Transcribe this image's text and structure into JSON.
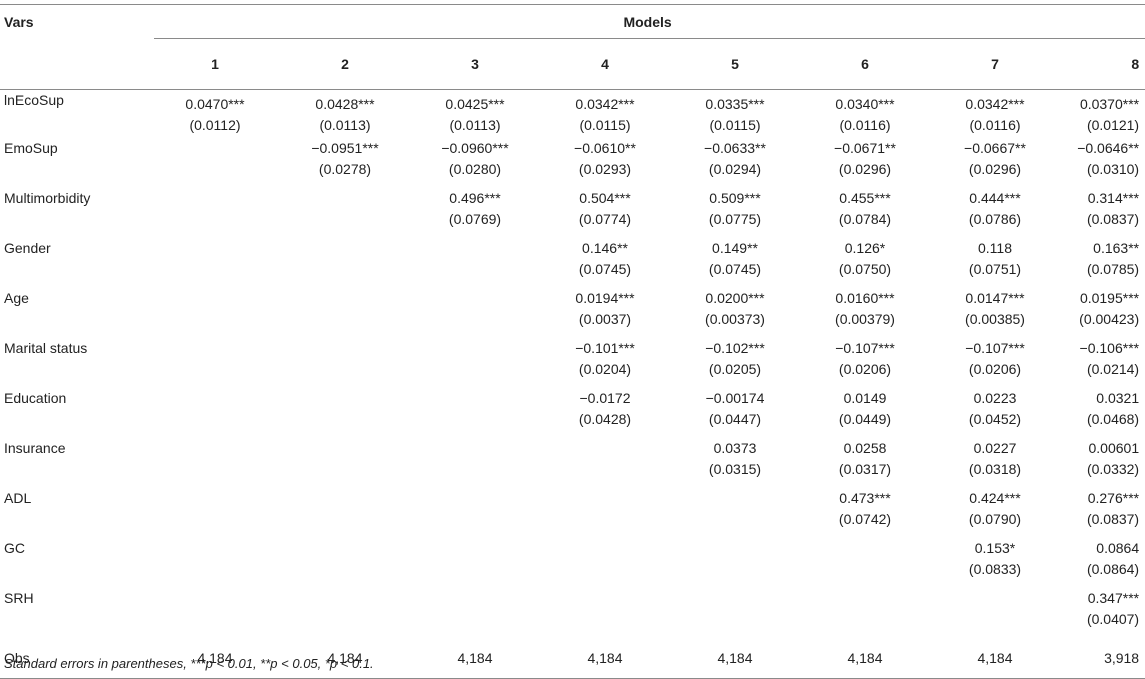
{
  "header": {
    "vars_label": "Vars",
    "models_label": "Models",
    "model_numbers": [
      "1",
      "2",
      "3",
      "4",
      "5",
      "6",
      "7",
      "8"
    ]
  },
  "rows": [
    {
      "label": "lnEcoSup",
      "cells": [
        {
          "coef": "0.0470***",
          "se": "(0.0112)"
        },
        {
          "coef": "0.0428***",
          "se": "(0.0113)"
        },
        {
          "coef": "0.0425***",
          "se": "(0.0113)"
        },
        {
          "coef": "0.0342***",
          "se": "(0.0115)"
        },
        {
          "coef": "0.0335***",
          "se": "(0.0115)"
        },
        {
          "coef": "0.0340***",
          "se": "(0.0116)"
        },
        {
          "coef": "0.0342***",
          "se": "(0.0116)"
        },
        {
          "coef": "0.0370***",
          "se": "(0.0121)"
        }
      ]
    },
    {
      "label": "EmoSup",
      "cells": [
        {
          "coef": "",
          "se": ""
        },
        {
          "coef": "−0.0951***",
          "se": "(0.0278)"
        },
        {
          "coef": "−0.0960***",
          "se": "(0.0280)"
        },
        {
          "coef": "−0.0610**",
          "se": "(0.0293)"
        },
        {
          "coef": "−0.0633**",
          "se": "(0.0294)"
        },
        {
          "coef": "−0.0671**",
          "se": "(0.0296)"
        },
        {
          "coef": "−0.0667**",
          "se": "(0.0296)"
        },
        {
          "coef": "−0.0646**",
          "se": "(0.0310)"
        }
      ]
    },
    {
      "label": "Multimorbidity",
      "cells": [
        {
          "coef": "",
          "se": ""
        },
        {
          "coef": "",
          "se": ""
        },
        {
          "coef": "0.496***",
          "se": "(0.0769)"
        },
        {
          "coef": "0.504***",
          "se": "(0.0774)"
        },
        {
          "coef": "0.509***",
          "se": "(0.0775)"
        },
        {
          "coef": "0.455***",
          "se": "(0.0784)"
        },
        {
          "coef": "0.444***",
          "se": "(0.0786)"
        },
        {
          "coef": "0.314***",
          "se": "(0.0837)"
        }
      ]
    },
    {
      "label": "Gender",
      "cells": [
        {
          "coef": "",
          "se": ""
        },
        {
          "coef": "",
          "se": ""
        },
        {
          "coef": "",
          "se": ""
        },
        {
          "coef": "0.146**",
          "se": "(0.0745)"
        },
        {
          "coef": "0.149**",
          "se": "(0.0745)"
        },
        {
          "coef": "0.126*",
          "se": "(0.0750)"
        },
        {
          "coef": "0.118",
          "se": "(0.0751)"
        },
        {
          "coef": "0.163**",
          "se": "(0.0785)"
        }
      ]
    },
    {
      "label": "Age",
      "cells": [
        {
          "coef": "",
          "se": ""
        },
        {
          "coef": "",
          "se": ""
        },
        {
          "coef": "",
          "se": ""
        },
        {
          "coef": "0.0194***",
          "se": "(0.0037)"
        },
        {
          "coef": "0.0200***",
          "se": "(0.00373)"
        },
        {
          "coef": "0.0160***",
          "se": "(0.00379)"
        },
        {
          "coef": "0.0147***",
          "se": "(0.00385)"
        },
        {
          "coef": "0.0195***",
          "se": "(0.00423)"
        }
      ]
    },
    {
      "label": "Marital status",
      "cells": [
        {
          "coef": "",
          "se": ""
        },
        {
          "coef": "",
          "se": ""
        },
        {
          "coef": "",
          "se": ""
        },
        {
          "coef": "−0.101***",
          "se": "(0.0204)"
        },
        {
          "coef": "−0.102***",
          "se": "(0.0205)"
        },
        {
          "coef": "−0.107***",
          "se": "(0.0206)"
        },
        {
          "coef": "−0.107***",
          "se": "(0.0206)"
        },
        {
          "coef": "−0.106***",
          "se": "(0.0214)"
        }
      ]
    },
    {
      "label": "Education",
      "cells": [
        {
          "coef": "",
          "se": ""
        },
        {
          "coef": "",
          "se": ""
        },
        {
          "coef": "",
          "se": ""
        },
        {
          "coef": "−0.0172",
          "se": "(0.0428)"
        },
        {
          "coef": "−0.00174",
          "se": "(0.0447)"
        },
        {
          "coef": "0.0149",
          "se": "(0.0449)"
        },
        {
          "coef": "0.0223",
          "se": "(0.0452)"
        },
        {
          "coef": "0.0321",
          "se": "(0.0468)"
        }
      ]
    },
    {
      "label": "Insurance",
      "cells": [
        {
          "coef": "",
          "se": ""
        },
        {
          "coef": "",
          "se": ""
        },
        {
          "coef": "",
          "se": ""
        },
        {
          "coef": "",
          "se": ""
        },
        {
          "coef": "0.0373",
          "se": "(0.0315)"
        },
        {
          "coef": "0.0258",
          "se": "(0.0317)"
        },
        {
          "coef": "0.0227",
          "se": "(0.0318)"
        },
        {
          "coef": "0.00601",
          "se": "(0.0332)"
        }
      ]
    },
    {
      "label": "ADL",
      "cells": [
        {
          "coef": "",
          "se": ""
        },
        {
          "coef": "",
          "se": ""
        },
        {
          "coef": "",
          "se": ""
        },
        {
          "coef": "",
          "se": ""
        },
        {
          "coef": "",
          "se": ""
        },
        {
          "coef": "0.473***",
          "se": "(0.0742)"
        },
        {
          "coef": "0.424***",
          "se": "(0.0790)"
        },
        {
          "coef": "0.276***",
          "se": "(0.0837)"
        }
      ]
    },
    {
      "label": "GC",
      "cells": [
        {
          "coef": "",
          "se": ""
        },
        {
          "coef": "",
          "se": ""
        },
        {
          "coef": "",
          "se": ""
        },
        {
          "coef": "",
          "se": ""
        },
        {
          "coef": "",
          "se": ""
        },
        {
          "coef": "",
          "se": ""
        },
        {
          "coef": "0.153*",
          "se": "(0.0833)"
        },
        {
          "coef": "0.0864",
          "se": "(0.0864)"
        }
      ]
    },
    {
      "label": "SRH",
      "cells": [
        {
          "coef": "",
          "se": ""
        },
        {
          "coef": "",
          "se": ""
        },
        {
          "coef": "",
          "se": ""
        },
        {
          "coef": "",
          "se": ""
        },
        {
          "coef": "",
          "se": ""
        },
        {
          "coef": "",
          "se": ""
        },
        {
          "coef": "",
          "se": ""
        },
        {
          "coef": "0.347***",
          "se": "(0.0407)"
        }
      ]
    }
  ],
  "obs": {
    "label": "Obs",
    "values": [
      "4,184",
      "4,184",
      "4,184",
      "4,184",
      "4,184",
      "4,184",
      "4,184",
      "3,918"
    ]
  },
  "footnote": "Standard errors in parentheses, ***p < 0.01, **p < 0.05, *p < 0.1."
}
